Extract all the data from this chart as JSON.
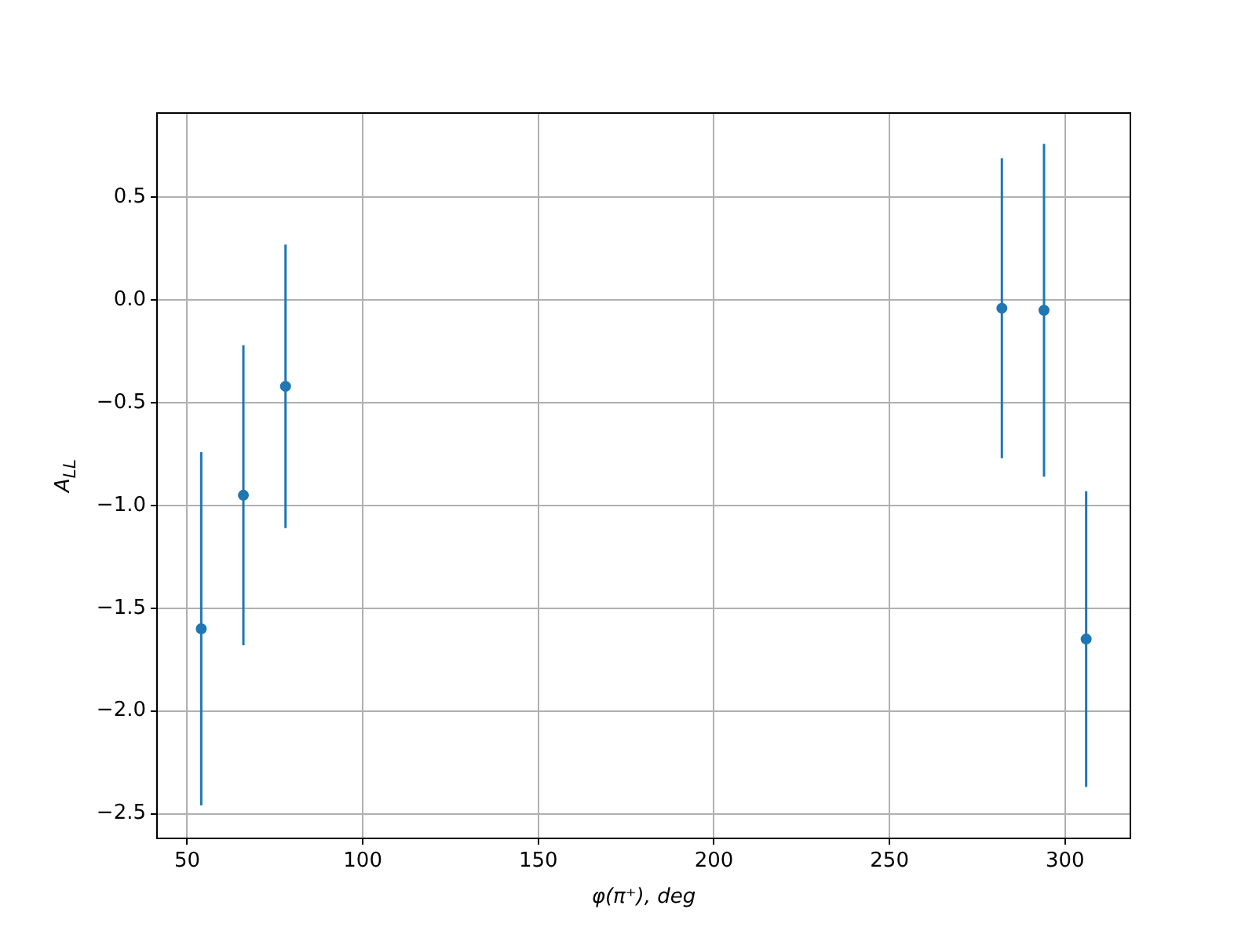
{
  "chart_data": {
    "type": "scatter",
    "xlabel": "φ(π⁺), deg",
    "ylabel": "A$_{LL}$",
    "x": [
      54,
      66,
      78,
      282,
      294,
      306
    ],
    "values": [
      -1.6,
      -0.95,
      -0.42,
      -0.04,
      -0.05,
      -1.65
    ],
    "errors": [
      0.86,
      0.73,
      0.69,
      0.73,
      0.81,
      0.72
    ],
    "color": "#1f77b4",
    "marker": "circle",
    "grid": true,
    "xlim": [
      41.4,
      318.6
    ],
    "xticks": [
      50,
      100,
      150,
      200,
      250,
      300
    ],
    "ylim": [
      -2.62,
      0.91
    ],
    "yticks": [
      -2.5,
      {
        "value": -2,
        "label": "−2.0"
      },
      -1.5,
      {
        "value": -1,
        "label": "−1.0"
      },
      -0.5,
      {
        "value": 0,
        "label": "0.0"
      },
      0.5
    ]
  }
}
